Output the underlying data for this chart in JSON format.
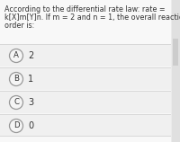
{
  "background_color": "#ebebeb",
  "page_bg_color": "#f5f5f5",
  "question_text_lines": [
    "According to the differential rate law: rate =",
    "k[X]m[Y]n. If m = 2 and n = 1, the overall reaction",
    "order is:"
  ],
  "options": [
    {
      "label": "A",
      "value": "2"
    },
    {
      "label": "B",
      "value": "1"
    },
    {
      "label": "C",
      "value": "3"
    },
    {
      "label": "D",
      "value": "0"
    }
  ],
  "option_bg_color": "#f0f0f0",
  "option_separator_color": "#d8d8d8",
  "circle_edge_color": "#999999",
  "circle_face_color": "#f5f5f5",
  "text_color": "#333333",
  "scrollbar_color": "#cccccc",
  "question_fontsize": 5.8,
  "option_fontsize": 7.0,
  "label_fontsize": 6.2
}
